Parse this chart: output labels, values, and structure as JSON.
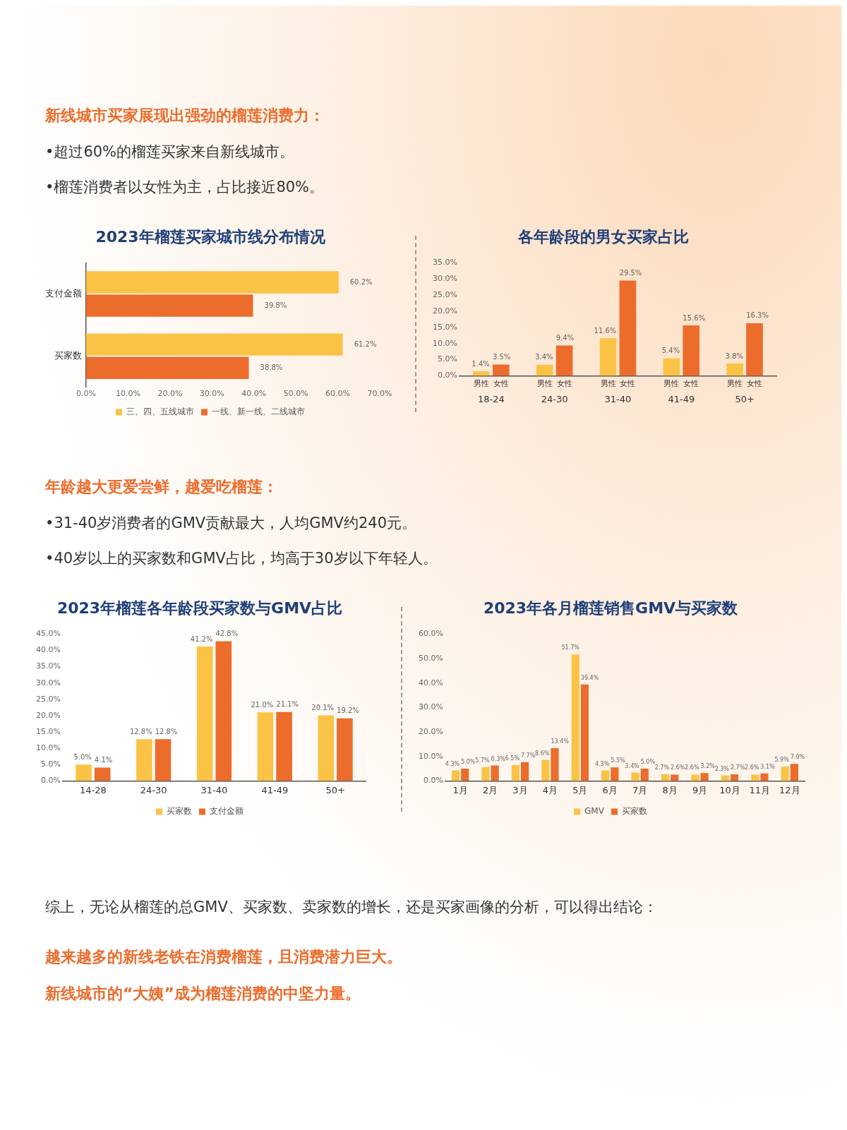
{
  "chart_data": [
    {
      "type": "other",
      "title": "新线城市买家展现出强劲的榴莲消费力：",
      "annotations": [
        "•超过60%的榴莲买家来自新线城市。",
        "•榴莲消费者以女性为主，占比接近80%。"
      ]
    },
    {
      "type": "bar",
      "orientation": "horizontal",
      "title": "2023年榴莲买家城市线分布情况",
      "categories": [
        "支付金额",
        "买家数"
      ],
      "series": [
        {
          "name": "三、四、五线城市",
          "color": "#fbc346",
          "values": [
            60.2,
            61.2
          ],
          "value_labels": [
            "60.2%",
            "61.2%"
          ]
        },
        {
          "name": "一线、新一线、二线城市",
          "color": "#ec6c2c",
          "values": [
            39.8,
            38.8
          ],
          "value_labels": [
            "39.8%",
            "38.8%"
          ]
        }
      ],
      "xlim": [
        0,
        70
      ],
      "xticks": [
        {
          "value": 0,
          "label": "0.0%"
        },
        {
          "value": 10,
          "label": "10.0%"
        },
        {
          "value": 20,
          "label": "20.0%"
        },
        {
          "value": 30,
          "label": "30.0%"
        },
        {
          "value": 40,
          "label": "40.0%"
        },
        {
          "value": 50,
          "label": "50.0%"
        },
        {
          "value": 60,
          "label": "60.0%"
        },
        {
          "value": 70,
          "label": "70.0%"
        }
      ],
      "legend": "bottom"
    },
    {
      "type": "bar",
      "title": "各年龄段的男女买家占比",
      "categories": [
        "18-24",
        "24-30",
        "31-40",
        "41-49",
        "50+"
      ],
      "series": [
        {
          "name": "男性",
          "color": "#fbc346",
          "values": [
            1.4,
            3.4,
            11.6,
            5.4,
            3.8
          ],
          "value_labels": [
            "1.4%",
            "3.4%",
            "11.6%",
            "5.4%",
            "3.8%"
          ]
        },
        {
          "name": "女性",
          "color": "#ec6c2c",
          "values": [
            3.5,
            9.4,
            29.5,
            15.6,
            16.3
          ],
          "value_labels": [
            "3.5%",
            "9.4%",
            "29.5%",
            "15.6%",
            "16.3%"
          ]
        }
      ],
      "ylim": [
        0,
        35
      ],
      "yticks": [
        {
          "value": 0,
          "label": "0.0%"
        },
        {
          "value": 5,
          "label": "5.0%"
        },
        {
          "value": 10,
          "label": "10.0%"
        },
        {
          "value": 15,
          "label": "15.0%"
        },
        {
          "value": 20,
          "label": "20.0%"
        },
        {
          "value": 25,
          "label": "25.0%"
        },
        {
          "value": 30,
          "label": "30.0%"
        },
        {
          "value": 35,
          "label": "35.0%"
        }
      ]
    },
    {
      "type": "other",
      "title": "年龄越大更爱尝鲜，越爱吃榴莲：",
      "annotations": [
        "•31-40岁消费者的GMV贡献最大，人均GMV约240元。",
        "•40岁以上的买家数和GMV占比，均高于30岁以下年轻人。"
      ]
    },
    {
      "type": "bar",
      "title": "2023年榴莲各年龄段买家数与GMV占比",
      "categories": [
        "14-28",
        "24-30",
        "31-40",
        "41-49",
        "50+"
      ],
      "series": [
        {
          "name": "买家数",
          "color": "#fbc346",
          "values": [
            5.0,
            12.8,
            41.2,
            21.0,
            20.1
          ],
          "value_labels": [
            "5.0%",
            "12.8%",
            "41.2%",
            "21.0%",
            "20.1%"
          ]
        },
        {
          "name": "支付金额",
          "color": "#ec6c2c",
          "values": [
            4.1,
            12.8,
            42.8,
            21.1,
            19.2
          ],
          "value_labels": [
            "4.1%",
            "12.8%",
            "42.8%",
            "21.1%",
            "19.2%"
          ]
        }
      ],
      "ylim": [
        0,
        45
      ],
      "yticks": [
        {
          "value": 0,
          "label": "0.0%"
        },
        {
          "value": 5,
          "label": "5.0%"
        },
        {
          "value": 10,
          "label": "10.0%"
        },
        {
          "value": 15,
          "label": "15.0%"
        },
        {
          "value": 20,
          "label": "20.0%"
        },
        {
          "value": 25,
          "label": "25.0%"
        },
        {
          "value": 30,
          "label": "30.0%"
        },
        {
          "value": 35,
          "label": "35.0%"
        },
        {
          "value": 40,
          "label": "40.0%"
        },
        {
          "value": 45,
          "label": "45.0%"
        }
      ],
      "legend": "bottom"
    },
    {
      "type": "bar",
      "title": "2023年各月榴莲销售GMV与买家数",
      "categories": [
        "1月",
        "2月",
        "3月",
        "4月",
        "5月",
        "6月",
        "7月",
        "8月",
        "9月",
        "10月",
        "11月",
        "12月"
      ],
      "series": [
        {
          "name": "GMV",
          "color": "#fbc346",
          "values": [
            4.3,
            5.7,
            6.5,
            8.6,
            51.7,
            4.3,
            3.4,
            2.7,
            2.6,
            2.3,
            2.6,
            5.9
          ],
          "value_labels": [
            "4.3%",
            "5.7%",
            "6.5%",
            "8.6%",
            "51.7%",
            "4.3%",
            "3.4%",
            "2.7%",
            "2.6%",
            "2.3%",
            "2.6%",
            "5.9%"
          ]
        },
        {
          "name": "买家数",
          "color": "#ec6c2c",
          "values": [
            5.0,
            6.3,
            7.7,
            13.4,
            39.4,
            5.5,
            5.0,
            2.6,
            3.2,
            2.7,
            3.1,
            7.0
          ],
          "value_labels": [
            "5.0%",
            "6.3%",
            "7.7%",
            "13.4%",
            "39.4%",
            "5.5%",
            "5.0%",
            "2.6%",
            "3.2%",
            "2.7%",
            "3.1%",
            "7.0%"
          ]
        }
      ],
      "ylim": [
        0,
        60
      ],
      "yticks": [
        {
          "value": 0,
          "label": "0.0%"
        },
        {
          "value": 10,
          "label": "10.0%"
        },
        {
          "value": 20,
          "label": "20.0%"
        },
        {
          "value": 30,
          "label": "30.0%"
        },
        {
          "value": 40,
          "label": "40.0%"
        },
        {
          "value": 50,
          "label": "50.0%"
        },
        {
          "value": 60,
          "label": "60.0%"
        }
      ],
      "legend": "bottom"
    },
    {
      "type": "other",
      "annotations": [
        "综上，无论从榴莲的总GMV、买家数、卖家数的增长，还是买家画像的分析，可以得出结论："
      ]
    },
    {
      "type": "other",
      "title": "越来越多的新线老铁在消费榴莲，且消费潜力巨大。"
    },
    {
      "type": "other",
      "title": "新线城市的“大姨”成为榴莲消费的中坚力量。"
    }
  ]
}
